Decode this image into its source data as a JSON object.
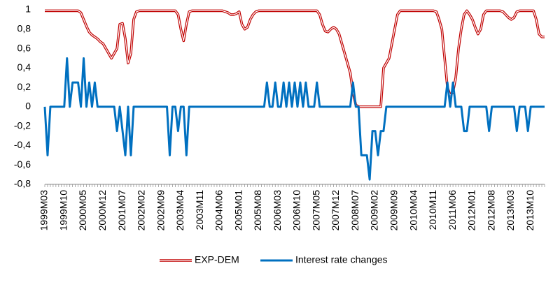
{
  "chart_data": {
    "type": "line",
    "categories": [
      "1999M03",
      null,
      null,
      null,
      null,
      null,
      null,
      "1999M10",
      null,
      null,
      null,
      null,
      null,
      null,
      "2000M05",
      null,
      null,
      null,
      null,
      null,
      null,
      "2000M12",
      null,
      null,
      null,
      null,
      null,
      null,
      "2001M07",
      null,
      null,
      null,
      null,
      null,
      null,
      "2002M02",
      null,
      null,
      null,
      null,
      null,
      null,
      "2002M09",
      null,
      null,
      null,
      null,
      null,
      null,
      "2003M04",
      null,
      null,
      null,
      null,
      null,
      null,
      "2003M11",
      null,
      null,
      null,
      null,
      null,
      null,
      "2004M06",
      null,
      null,
      null,
      null,
      null,
      null,
      "2005M01",
      null,
      null,
      null,
      null,
      null,
      null,
      "2005M08",
      null,
      null,
      null,
      null,
      null,
      null,
      "2006M03",
      null,
      null,
      null,
      null,
      null,
      null,
      "2006M10",
      null,
      null,
      null,
      null,
      null,
      null,
      "2007M05",
      null,
      null,
      null,
      null,
      null,
      null,
      "2007M12",
      null,
      null,
      null,
      null,
      null,
      null,
      "2008M07",
      null,
      null,
      null,
      null,
      null,
      null,
      "2009M02",
      null,
      null,
      null,
      null,
      null,
      null,
      "2009M09",
      null,
      null,
      null,
      null,
      null,
      null,
      "2010M04",
      null,
      null,
      null,
      null,
      null,
      null,
      "2010M11",
      null,
      null,
      null,
      null,
      null,
      null,
      "2011M06",
      null,
      null,
      null,
      null,
      null,
      null,
      "2012M01",
      null,
      null,
      null,
      null,
      null,
      null,
      "2012M08",
      null,
      null,
      null,
      null,
      null,
      null,
      "2013M03",
      null,
      null,
      null,
      null,
      null,
      null,
      "2013M10",
      null,
      null,
      null,
      null,
      null
    ],
    "series": [
      {
        "name": "EXP-DEM",
        "color": "#c00000",
        "style": "double",
        "values": [
          0.99,
          0.99,
          0.99,
          0.99,
          0.99,
          0.99,
          0.99,
          0.99,
          0.99,
          0.99,
          0.99,
          0.99,
          0.99,
          0.97,
          0.9,
          0.83,
          0.77,
          0.74,
          0.72,
          0.7,
          0.67,
          0.65,
          0.6,
          0.55,
          0.5,
          0.55,
          0.6,
          0.85,
          0.86,
          0.7,
          0.45,
          0.55,
          0.9,
          0.98,
          0.99,
          0.99,
          0.99,
          0.99,
          0.99,
          0.99,
          0.99,
          0.99,
          0.99,
          0.99,
          0.99,
          0.99,
          0.99,
          0.99,
          0.95,
          0.8,
          0.68,
          0.85,
          0.98,
          0.99,
          0.99,
          0.99,
          0.99,
          0.99,
          0.99,
          0.99,
          0.99,
          0.99,
          0.99,
          0.99,
          0.99,
          0.98,
          0.97,
          0.95,
          0.95,
          0.96,
          0.98,
          0.85,
          0.8,
          0.82,
          0.9,
          0.95,
          0.98,
          0.99,
          0.99,
          0.99,
          0.99,
          0.99,
          0.99,
          0.99,
          0.99,
          0.99,
          0.99,
          0.99,
          0.99,
          0.99,
          0.99,
          0.99,
          0.99,
          0.99,
          0.99,
          0.99,
          0.99,
          0.99,
          0.99,
          0.95,
          0.85,
          0.78,
          0.77,
          0.8,
          0.82,
          0.8,
          0.75,
          0.65,
          0.55,
          0.45,
          0.35,
          0.15,
          0.02,
          0,
          0,
          0,
          0,
          0,
          0,
          0,
          0,
          0,
          0.4,
          0.45,
          0.5,
          0.65,
          0.8,
          0.95,
          0.99,
          0.99,
          0.99,
          0.99,
          0.99,
          0.99,
          0.99,
          0.99,
          0.99,
          0.99,
          0.99,
          0.99,
          0.99,
          0.98,
          0.9,
          0.8,
          0.5,
          0.2,
          0.12,
          0.15,
          0.3,
          0.6,
          0.8,
          0.95,
          0.99,
          0.95,
          0.9,
          0.82,
          0.75,
          0.8,
          0.95,
          0.99,
          0.99,
          0.99,
          0.99,
          0.99,
          0.99,
          0.98,
          0.95,
          0.92,
          0.9,
          0.92,
          0.98,
          0.99,
          0.99,
          0.99,
          0.99,
          0.99,
          0.99,
          0.9,
          0.75,
          0.72,
          0.72
        ]
      },
      {
        "name": "Interest rate changes",
        "color": "#0070c0",
        "style": "single",
        "values": [
          0,
          -0.5,
          0,
          0,
          0,
          0,
          0,
          0,
          0.5,
          0,
          0.25,
          0.25,
          0.25,
          0,
          0.5,
          0,
          0.25,
          0,
          0.25,
          0,
          0,
          0,
          0,
          0,
          0,
          0,
          -0.25,
          0,
          -0.25,
          -0.5,
          0,
          -0.5,
          0,
          0,
          0,
          0,
          0,
          0,
          0,
          0,
          0,
          0,
          0,
          0,
          0,
          -0.5,
          0,
          0,
          -0.25,
          0,
          0,
          -0.5,
          0,
          0,
          0,
          0,
          0,
          0,
          0,
          0,
          0,
          0,
          0,
          0,
          0,
          0,
          0,
          0,
          0,
          0,
          0,
          0,
          0,
          0,
          0,
          0,
          0,
          0,
          0,
          0,
          0.25,
          0,
          0,
          0.25,
          0,
          0,
          0.25,
          0,
          0.25,
          0,
          0.25,
          0,
          0.25,
          0,
          0.25,
          0,
          0,
          0,
          0.25,
          0,
          0,
          0,
          0,
          0,
          0,
          0,
          0,
          0,
          0,
          0,
          0,
          0.25,
          0,
          0,
          -0.5,
          -0.5,
          -0.5,
          -0.75,
          -0.25,
          -0.25,
          -0.5,
          -0.25,
          -0.25,
          0,
          0,
          0,
          0,
          0,
          0,
          0,
          0,
          0,
          0,
          0,
          0,
          0,
          0,
          0,
          0,
          0,
          0,
          0,
          0,
          0,
          0,
          0.25,
          0,
          0.25,
          0,
          0,
          0,
          -0.25,
          -0.25,
          0,
          0,
          0,
          0,
          0,
          0,
          0,
          -0.25,
          0,
          0,
          0,
          0,
          0,
          0,
          0,
          0,
          0,
          -0.25,
          0,
          0,
          0,
          -0.25,
          0,
          0,
          0,
          0,
          0,
          0
        ]
      }
    ],
    "ylim": [
      -0.8,
      1
    ],
    "yticks": [
      {
        "value": -0.8,
        "label": "-0,8"
      },
      {
        "value": -0.6,
        "label": "-0,6"
      },
      {
        "value": -0.4,
        "label": "-0,4"
      },
      {
        "value": -0.2,
        "label": "-0,2"
      },
      0,
      {
        "value": 0.2,
        "label": "0,2"
      },
      {
        "value": 0.4,
        "label": "0,4"
      },
      {
        "value": 0.6,
        "label": "0,6"
      },
      {
        "value": 0.8,
        "label": "0,8"
      },
      1
    ],
    "grid": false,
    "legend": "bottom"
  }
}
